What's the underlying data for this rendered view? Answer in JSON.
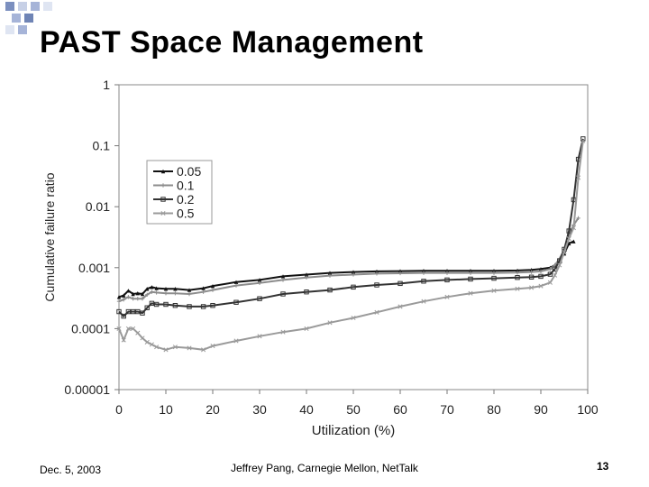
{
  "slide": {
    "title": "PAST Space Management",
    "footer_date": "Dec. 5, 2003",
    "footer_center": "Jeffrey Pang, Carnegie Mellon, NetTalk",
    "page_number": "13"
  },
  "colors": {
    "decoration": "#6f84b5",
    "series_0_05": "#111111",
    "series_0_1": "#8c8c8c",
    "series_0_2": "#333333",
    "series_0_5": "#9a9a9a"
  },
  "chart_data": {
    "type": "line",
    "xlabel": "Utilization (%)",
    "ylabel": "Cumulative failure ratio",
    "xlim": [
      0,
      100
    ],
    "ylim": [
      1e-05,
      1
    ],
    "y_scale": "log",
    "x_ticks": [
      "0",
      "10",
      "20",
      "30",
      "40",
      "50",
      "60",
      "70",
      "80",
      "90",
      "100"
    ],
    "y_ticks": [
      "1",
      "0.1",
      "0.01",
      "0.001",
      "0.0001",
      "0.00001"
    ],
    "grid": false,
    "legend": "top-left",
    "series": [
      {
        "name": "0.05",
        "marker": "triangle",
        "x": [
          0,
          1,
          2,
          3,
          4,
          5,
          6,
          7,
          8,
          10,
          12,
          15,
          18,
          20,
          25,
          30,
          35,
          40,
          45,
          50,
          55,
          60,
          65,
          70,
          75,
          80,
          85,
          88,
          90,
          92,
          93,
          94,
          95,
          96,
          97
        ],
        "y": [
          0.00033,
          0.00035,
          0.00042,
          0.00037,
          0.00038,
          0.00037,
          0.00045,
          0.00048,
          0.00046,
          0.00045,
          0.00045,
          0.00043,
          0.00046,
          0.0005,
          0.00058,
          0.00063,
          0.00072,
          0.00077,
          0.00082,
          0.00085,
          0.00087,
          0.00088,
          0.00089,
          0.00089,
          0.00089,
          0.00089,
          0.0009,
          0.00092,
          0.00095,
          0.001,
          0.0011,
          0.0013,
          0.0017,
          0.0025,
          0.0027
        ]
      },
      {
        "name": "0.1",
        "marker": "plus",
        "x": [
          0,
          1,
          2,
          3,
          4,
          5,
          6,
          7,
          8,
          10,
          12,
          15,
          18,
          20,
          25,
          30,
          35,
          40,
          45,
          50,
          55,
          60,
          65,
          70,
          75,
          80,
          85,
          88,
          90,
          92,
          93,
          94,
          95,
          96,
          97,
          98
        ],
        "y": [
          0.00028,
          0.0003,
          0.00033,
          0.00031,
          0.00031,
          0.00031,
          0.00036,
          0.0004,
          0.00039,
          0.00038,
          0.00038,
          0.00037,
          0.0004,
          0.00043,
          0.00051,
          0.00056,
          0.00063,
          0.00069,
          0.00074,
          0.00077,
          0.0008,
          0.00081,
          0.00082,
          0.00082,
          0.00082,
          0.00082,
          0.00083,
          0.00085,
          0.00087,
          0.00095,
          0.0011,
          0.0014,
          0.002,
          0.0035,
          0.005,
          0.0065
        ]
      },
      {
        "name": "0.2",
        "marker": "square",
        "x": [
          0,
          1,
          2,
          3,
          4,
          5,
          6,
          7,
          8,
          10,
          12,
          15,
          18,
          20,
          25,
          30,
          35,
          40,
          45,
          50,
          55,
          60,
          65,
          70,
          75,
          80,
          85,
          88,
          90,
          92,
          93,
          94,
          95,
          96,
          97,
          98,
          99
        ],
        "y": [
          0.00019,
          0.00016,
          0.00019,
          0.00019,
          0.00019,
          0.00018,
          0.00022,
          0.00026,
          0.00025,
          0.00025,
          0.00024,
          0.00023,
          0.00023,
          0.00024,
          0.00027,
          0.00031,
          0.00037,
          0.0004,
          0.00043,
          0.00048,
          0.00052,
          0.00055,
          0.0006,
          0.00063,
          0.00065,
          0.00067,
          0.00069,
          0.0007,
          0.00072,
          0.00078,
          0.00095,
          0.0013,
          0.002,
          0.004,
          0.013,
          0.06,
          0.13
        ]
      },
      {
        "name": "0.5",
        "marker": "x",
        "x": [
          0,
          1,
          2,
          3,
          4,
          5,
          6,
          7,
          8,
          10,
          12,
          15,
          18,
          20,
          25,
          30,
          35,
          40,
          45,
          50,
          55,
          60,
          65,
          70,
          75,
          80,
          85,
          88,
          90,
          92,
          93,
          94,
          95,
          96,
          97,
          98,
          99
        ],
        "y": [
          0.0001,
          6.5e-05,
          0.0001,
          0.0001,
          8.5e-05,
          7e-05,
          6e-05,
          5.5e-05,
          5e-05,
          4.5e-05,
          5e-05,
          4.8e-05,
          4.5e-05,
          5.2e-05,
          6.3e-05,
          7.5e-05,
          8.8e-05,
          0.0001,
          0.000125,
          0.00015,
          0.000185,
          0.00023,
          0.00028,
          0.00033,
          0.00038,
          0.00042,
          0.00045,
          0.00047,
          0.0005,
          0.00057,
          0.00075,
          0.0011,
          0.0018,
          0.003,
          0.0045,
          0.03,
          0.12
        ]
      }
    ]
  }
}
